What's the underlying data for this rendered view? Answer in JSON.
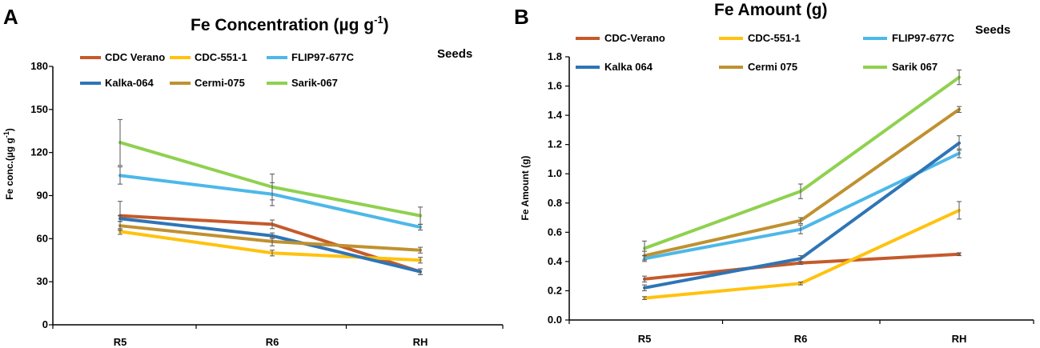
{
  "chart_data": [
    {
      "panel": "A",
      "type": "line",
      "title": "Fe Concentration (µg g",
      "title_sup": "-1",
      "title_end": ")",
      "annotation": "Seeds",
      "ylabel": "Fe conc.(µg g",
      "ylabel_sup": "-1",
      "ylabel_end": ")",
      "ylim": [
        0,
        180
      ],
      "yticks": [
        0,
        30,
        60,
        90,
        120,
        150,
        180
      ],
      "ytick_labels": [
        "0",
        "30",
        "60",
        "90",
        "120",
        "150",
        "180"
      ],
      "categories": [
        "R5",
        "R6",
        "RH"
      ],
      "series": [
        {
          "name": "CDC Verano",
          "color": "#c55a2b",
          "values": [
            76,
            70,
            37
          ],
          "errors": [
            10,
            3,
            2
          ]
        },
        {
          "name": "CDC-551-1",
          "color": "#ffc20e",
          "values": [
            65,
            50,
            45
          ],
          "errors": [
            2,
            2,
            2
          ]
        },
        {
          "name": "FLIP97-677C",
          "color": "#4db8e8",
          "values": [
            104,
            91,
            68
          ],
          "errors": [
            6,
            8,
            2
          ]
        },
        {
          "name": "Kalka-064",
          "color": "#2e75b6",
          "values": [
            74,
            62,
            37
          ],
          "errors": [
            2,
            2,
            2
          ]
        },
        {
          "name": "Cermi-075",
          "color": "#bf9130",
          "values": [
            69,
            58,
            52
          ],
          "errors": [
            3,
            3,
            2
          ]
        },
        {
          "name": "Sarik-067",
          "color": "#8fd14f",
          "values": [
            127,
            96,
            76
          ],
          "errors": [
            16,
            9,
            6
          ]
        }
      ]
    },
    {
      "panel": "B",
      "type": "line",
      "title": "Fe Amount (g)",
      "annotation": "Seeds",
      "ylabel": "Fe Amount (g)",
      "ylim": [
        0,
        1.8
      ],
      "yticks": [
        0,
        0.2,
        0.4,
        0.6,
        0.8,
        1.0,
        1.2,
        1.4,
        1.6,
        1.8
      ],
      "ytick_labels": [
        "0.0",
        "0.2",
        "0.4",
        "0.6",
        "0.8",
        "1.0",
        "1.2",
        "1.4",
        "1.6",
        "1.8"
      ],
      "categories": [
        "R5",
        "R6",
        "RH"
      ],
      "series": [
        {
          "name": "CDC-Verano",
          "color": "#c55a2b",
          "values": [
            0.28,
            0.39,
            0.45
          ],
          "errors": [
            0.02,
            0.01,
            0.01
          ]
        },
        {
          "name": "CDC-551-1",
          "color": "#ffc20e",
          "values": [
            0.15,
            0.25,
            0.75
          ],
          "errors": [
            0.01,
            0.01,
            0.06
          ]
        },
        {
          "name": "FLIP97-677C",
          "color": "#4db8e8",
          "values": [
            0.42,
            0.62,
            1.14
          ],
          "errors": [
            0.02,
            0.03,
            0.03
          ]
        },
        {
          "name": "Kalka 064",
          "color": "#2e75b6",
          "values": [
            0.22,
            0.42,
            1.21
          ],
          "errors": [
            0.02,
            0.02,
            0.05
          ]
        },
        {
          "name": "Cermi 075",
          "color": "#bf9130",
          "values": [
            0.44,
            0.68,
            1.44
          ],
          "errors": [
            0.03,
            0.02,
            0.02
          ]
        },
        {
          "name": "Sarik 067",
          "color": "#8fd14f",
          "values": [
            0.49,
            0.88,
            1.66
          ],
          "errors": [
            0.05,
            0.05,
            0.05
          ]
        }
      ]
    }
  ]
}
